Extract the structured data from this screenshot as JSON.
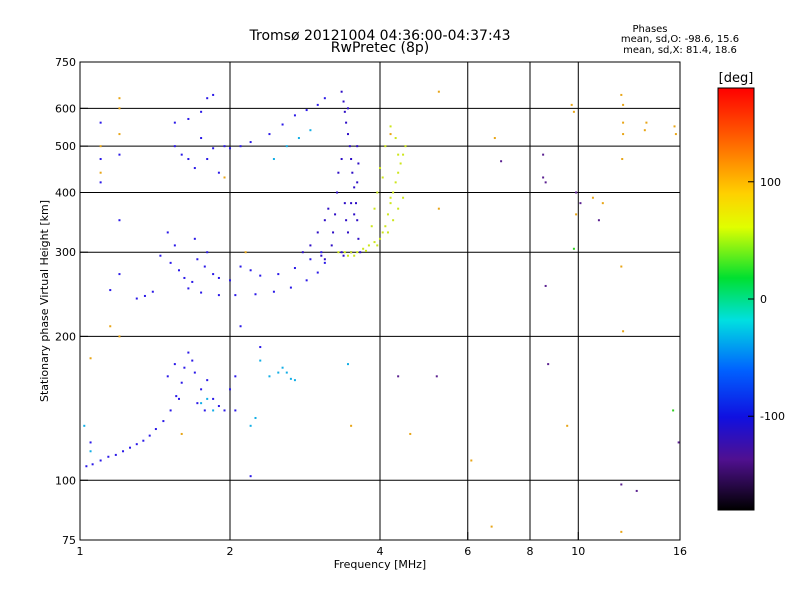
{
  "chart_data": {
    "type": "scatter",
    "title": "Tromsø 20121004 04:36:00-04:37:43",
    "subtitle": "RwPretec (8p)",
    "stats": {
      "heading": "Phases",
      "line_o": "mean, sd,O: -98.6, 15.6",
      "line_x": "mean, sd,X:  81.4, 18.6"
    },
    "xlabel": "Frequency [MHz]",
    "ylabel": "Stationary phase Virtual Height [km]",
    "x_scale": "log",
    "y_scale": "log",
    "xlim": [
      1,
      16
    ],
    "ylim": [
      75,
      750
    ],
    "x_ticks": [
      1,
      2,
      4,
      6,
      8,
      10,
      16
    ],
    "y_ticks": [
      75,
      100,
      200,
      300,
      400,
      500,
      600,
      750
    ],
    "x_gridlines": [
      2,
      4,
      6,
      8,
      10,
      16
    ],
    "y_gridlines": [
      100,
      200,
      300,
      400,
      500,
      600
    ],
    "grid": true,
    "colorbar": {
      "label": "[deg]",
      "range": [
        -180,
        180
      ],
      "ticks": [
        100,
        0,
        -100
      ]
    },
    "series": [
      {
        "color": "#2a18e8",
        "points": [
          [
            1.03,
            107
          ],
          [
            1.06,
            108
          ],
          [
            1.1,
            110
          ],
          [
            1.14,
            112
          ],
          [
            1.18,
            113
          ],
          [
            1.22,
            115
          ],
          [
            1.26,
            117
          ],
          [
            1.3,
            119
          ],
          [
            1.34,
            121
          ],
          [
            1.38,
            124
          ],
          [
            1.42,
            128
          ],
          [
            1.47,
            133
          ],
          [
            1.52,
            140
          ],
          [
            1.56,
            150
          ],
          [
            1.6,
            160
          ],
          [
            1.62,
            172
          ],
          [
            1.65,
            185
          ],
          [
            1.7,
            168
          ],
          [
            1.75,
            155
          ],
          [
            1.8,
            162
          ],
          [
            1.85,
            148
          ],
          [
            1.9,
            143
          ],
          [
            1.95,
            140
          ],
          [
            2.0,
            155
          ],
          [
            2.05,
            165
          ],
          [
            1.5,
            165
          ],
          [
            1.55,
            175
          ],
          [
            1.58,
            148
          ],
          [
            1.68,
            178
          ],
          [
            1.72,
            145
          ],
          [
            1.78,
            140
          ],
          [
            1.55,
            500
          ],
          [
            1.6,
            480
          ],
          [
            1.65,
            470
          ],
          [
            1.7,
            450
          ],
          [
            1.75,
            520
          ],
          [
            1.8,
            470
          ],
          [
            1.85,
            495
          ],
          [
            1.9,
            440
          ],
          [
            1.95,
            500
          ],
          [
            2.0,
            495
          ],
          [
            2.1,
            500
          ],
          [
            2.2,
            510
          ],
          [
            1.52,
            285
          ],
          [
            1.58,
            275
          ],
          [
            1.62,
            265
          ],
          [
            1.68,
            260
          ],
          [
            1.72,
            290
          ],
          [
            1.78,
            280
          ],
          [
            1.85,
            270
          ],
          [
            1.9,
            265
          ],
          [
            2.0,
            262
          ],
          [
            2.1,
            280
          ],
          [
            2.2,
            275
          ],
          [
            2.3,
            268
          ],
          [
            1.65,
            252
          ],
          [
            1.75,
            247
          ],
          [
            1.9,
            244
          ],
          [
            2.05,
            244
          ],
          [
            2.25,
            245
          ],
          [
            2.45,
            248
          ],
          [
            2.65,
            253
          ],
          [
            2.85,
            262
          ],
          [
            3.0,
            272
          ],
          [
            3.1,
            285
          ],
          [
            2.5,
            270
          ],
          [
            2.7,
            278
          ],
          [
            2.9,
            290
          ],
          [
            3.05,
            300
          ],
          [
            2.4,
            530
          ],
          [
            2.55,
            555
          ],
          [
            2.7,
            580
          ],
          [
            2.85,
            595
          ],
          [
            3.0,
            610
          ],
          [
            3.1,
            630
          ],
          [
            1.5,
            330
          ],
          [
            1.55,
            310
          ],
          [
            1.45,
            295
          ],
          [
            1.7,
            320
          ],
          [
            1.8,
            300
          ],
          [
            1.3,
            240
          ],
          [
            1.35,
            243
          ],
          [
            1.4,
            248
          ],
          [
            1.55,
            560
          ],
          [
            1.65,
            570
          ],
          [
            1.75,
            590
          ],
          [
            1.8,
            630
          ],
          [
            1.85,
            640
          ],
          [
            1.1,
            560
          ],
          [
            1.1,
            470
          ],
          [
            1.1,
            420
          ],
          [
            1.15,
            250
          ],
          [
            1.2,
            270
          ],
          [
            1.05,
            120
          ],
          [
            2.05,
            140
          ],
          [
            2.3,
            190
          ],
          [
            2.1,
            210
          ],
          [
            2.2,
            102
          ],
          [
            1.2,
            480
          ],
          [
            1.2,
            350
          ]
        ]
      },
      {
        "color": "#2c0cc6",
        "points": [
          [
            3.35,
            650
          ],
          [
            3.38,
            620
          ],
          [
            3.4,
            590
          ],
          [
            3.42,
            560
          ],
          [
            3.45,
            530
          ],
          [
            3.48,
            500
          ],
          [
            3.5,
            470
          ],
          [
            3.52,
            440
          ],
          [
            3.55,
            410
          ],
          [
            3.58,
            380
          ],
          [
            3.6,
            350
          ],
          [
            3.62,
            320
          ],
          [
            3.65,
            300
          ],
          [
            3.3,
            440
          ],
          [
            3.28,
            400
          ],
          [
            3.25,
            360
          ],
          [
            3.22,
            330
          ],
          [
            3.2,
            310
          ],
          [
            3.45,
            330
          ],
          [
            3.5,
            300
          ],
          [
            3.55,
            360
          ],
          [
            3.6,
            420
          ],
          [
            3.62,
            460
          ],
          [
            3.4,
            380
          ],
          [
            3.42,
            350
          ],
          [
            3.35,
            300
          ],
          [
            3.38,
            295
          ],
          [
            3.5,
            380
          ],
          [
            3.6,
            500
          ],
          [
            3.45,
            600
          ],
          [
            2.8,
            300
          ],
          [
            2.9,
            310
          ],
          [
            3.0,
            330
          ],
          [
            3.1,
            350
          ],
          [
            3.15,
            370
          ],
          [
            3.05,
            295
          ],
          [
            3.1,
            290
          ],
          [
            3.35,
            470
          ]
        ]
      },
      {
        "color": "#12aee6",
        "points": [
          [
            2.2,
            130
          ],
          [
            2.25,
            135
          ],
          [
            2.4,
            165
          ],
          [
            2.5,
            168
          ],
          [
            2.55,
            172
          ],
          [
            2.6,
            168
          ],
          [
            2.65,
            163
          ],
          [
            2.7,
            162
          ],
          [
            1.85,
            140
          ],
          [
            1.8,
            148
          ],
          [
            1.75,
            145
          ],
          [
            2.3,
            178
          ],
          [
            2.45,
            470
          ],
          [
            2.6,
            500
          ],
          [
            2.75,
            520
          ],
          [
            2.9,
            540
          ],
          [
            1.05,
            115
          ],
          [
            1.02,
            130
          ],
          [
            3.45,
            175
          ]
        ]
      },
      {
        "color": "#cde61a",
        "points": [
          [
            3.4,
            300
          ],
          [
            3.5,
            300
          ],
          [
            3.6,
            300
          ],
          [
            3.7,
            305
          ],
          [
            3.8,
            310
          ],
          [
            3.9,
            315
          ],
          [
            4.0,
            320
          ],
          [
            4.05,
            330
          ],
          [
            4.1,
            340
          ],
          [
            4.15,
            360
          ],
          [
            4.2,
            380
          ],
          [
            4.25,
            400
          ],
          [
            4.3,
            420
          ],
          [
            4.35,
            440
          ],
          [
            4.4,
            460
          ],
          [
            4.45,
            480
          ],
          [
            4.5,
            500
          ],
          [
            4.3,
            520
          ],
          [
            4.2,
            550
          ],
          [
            4.1,
            500
          ],
          [
            4.0,
            450
          ],
          [
            3.95,
            400
          ],
          [
            3.9,
            370
          ],
          [
            3.85,
            340
          ],
          [
            4.15,
            330
          ],
          [
            4.25,
            350
          ],
          [
            4.35,
            370
          ],
          [
            4.45,
            390
          ],
          [
            3.3,
            300
          ],
          [
            3.45,
            295
          ],
          [
            3.55,
            295
          ],
          [
            3.75,
            302
          ],
          [
            3.95,
            310
          ],
          [
            4.05,
            430
          ],
          [
            4.2,
            390
          ],
          [
            4.35,
            480
          ]
        ]
      },
      {
        "color": "#e8a516",
        "points": [
          [
            1.2,
            630
          ],
          [
            1.2,
            600
          ],
          [
            1.2,
            530
          ],
          [
            1.1,
            500
          ],
          [
            1.1,
            440
          ],
          [
            1.2,
            200
          ],
          [
            1.15,
            210
          ],
          [
            1.05,
            180
          ],
          [
            5.25,
            650
          ],
          [
            4.2,
            530
          ],
          [
            5.25,
            370
          ],
          [
            6.1,
            110
          ],
          [
            6.7,
            80
          ],
          [
            6.8,
            520
          ],
          [
            9.7,
            610
          ],
          [
            9.8,
            590
          ],
          [
            9.9,
            360
          ],
          [
            10.7,
            390
          ],
          [
            11.2,
            380
          ],
          [
            12.2,
            640
          ],
          [
            12.3,
            610
          ],
          [
            12.3,
            560
          ],
          [
            12.3,
            530
          ],
          [
            12.25,
            470
          ],
          [
            12.2,
            280
          ],
          [
            12.3,
            205
          ],
          [
            12.2,
            78
          ],
          [
            13.6,
            540
          ],
          [
            13.7,
            560
          ],
          [
            15.6,
            550
          ],
          [
            15.7,
            530
          ],
          [
            3.5,
            130
          ],
          [
            4.6,
            125
          ],
          [
            9.5,
            130
          ],
          [
            1.6,
            125
          ],
          [
            1.95,
            430
          ],
          [
            2.15,
            300
          ]
        ]
      },
      {
        "color": "#30d020",
        "points": [
          [
            9.8,
            305
          ],
          [
            15.5,
            140
          ]
        ]
      },
      {
        "color": "#5a2090",
        "points": [
          [
            8.5,
            480
          ],
          [
            8.5,
            430
          ],
          [
            8.6,
            420
          ],
          [
            9.9,
            400
          ],
          [
            7.0,
            465
          ],
          [
            8.6,
            255
          ],
          [
            8.7,
            175
          ],
          [
            4.35,
            165
          ],
          [
            5.2,
            165
          ],
          [
            12.2,
            98
          ],
          [
            13.1,
            95
          ],
          [
            15.9,
            120
          ],
          [
            10.1,
            380
          ],
          [
            11.0,
            350
          ]
        ]
      }
    ]
  }
}
